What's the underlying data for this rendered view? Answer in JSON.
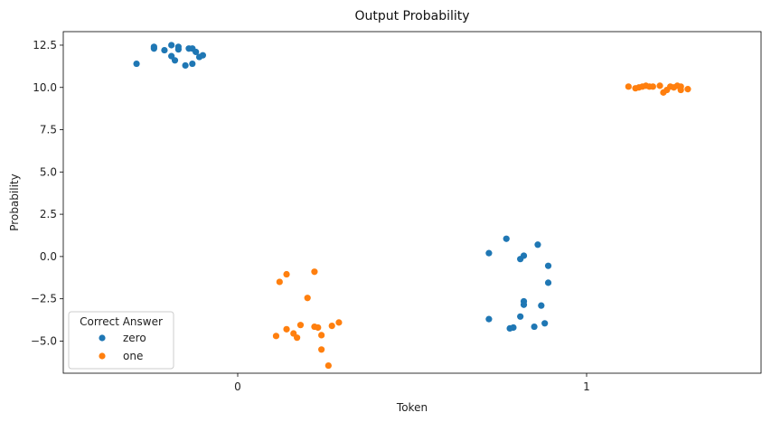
{
  "chart_data": {
    "type": "scatter",
    "title": "Output Probability",
    "xlabel": "Token",
    "ylabel": "Probability",
    "categories": [
      "0",
      "1"
    ],
    "ylim": [
      -6.9,
      13.3
    ],
    "yticks": [
      12.5,
      10.0,
      7.5,
      5.0,
      2.5,
      0.0,
      -2.5,
      -5.0
    ],
    "ytick_labels": [
      "12.5",
      "10.0",
      "7.5",
      "5.0",
      "2.5",
      "0.0",
      "−2.5",
      "−5.0"
    ],
    "grid": false,
    "legend": {
      "title": "Correct Answer",
      "placement": "lower-left"
    },
    "series": [
      {
        "name": "zero",
        "color": "#1f77b4",
        "points": [
          {
            "category": "0",
            "offset": -0.29,
            "y": 11.4
          },
          {
            "category": "0",
            "offset": -0.24,
            "y": 12.4
          },
          {
            "category": "0",
            "offset": -0.24,
            "y": 12.3
          },
          {
            "category": "0",
            "offset": -0.21,
            "y": 12.2
          },
          {
            "category": "0",
            "offset": -0.19,
            "y": 12.5
          },
          {
            "category": "0",
            "offset": -0.19,
            "y": 11.85
          },
          {
            "category": "0",
            "offset": -0.18,
            "y": 11.6
          },
          {
            "category": "0",
            "offset": -0.17,
            "y": 12.4
          },
          {
            "category": "0",
            "offset": -0.17,
            "y": 12.25
          },
          {
            "category": "0",
            "offset": -0.15,
            "y": 11.3
          },
          {
            "category": "0",
            "offset": -0.14,
            "y": 12.3
          },
          {
            "category": "0",
            "offset": -0.13,
            "y": 12.3
          },
          {
            "category": "0",
            "offset": -0.13,
            "y": 11.4
          },
          {
            "category": "0",
            "offset": -0.12,
            "y": 12.1
          },
          {
            "category": "0",
            "offset": -0.11,
            "y": 11.8
          },
          {
            "category": "0",
            "offset": -0.1,
            "y": 11.9
          },
          {
            "category": "1",
            "offset": -0.28,
            "y": 0.2
          },
          {
            "category": "1",
            "offset": -0.28,
            "y": -3.7
          },
          {
            "category": "1",
            "offset": -0.23,
            "y": 1.05
          },
          {
            "category": "1",
            "offset": -0.22,
            "y": -4.25
          },
          {
            "category": "1",
            "offset": -0.21,
            "y": -4.2
          },
          {
            "category": "1",
            "offset": -0.19,
            "y": -3.55
          },
          {
            "category": "1",
            "offset": -0.19,
            "y": -0.15
          },
          {
            "category": "1",
            "offset": -0.18,
            "y": 0.05
          },
          {
            "category": "1",
            "offset": -0.18,
            "y": -2.65
          },
          {
            "category": "1",
            "offset": -0.18,
            "y": -2.85
          },
          {
            "category": "1",
            "offset": -0.15,
            "y": -4.15
          },
          {
            "category": "1",
            "offset": -0.14,
            "y": 0.7
          },
          {
            "category": "1",
            "offset": -0.13,
            "y": -2.9
          },
          {
            "category": "1",
            "offset": -0.12,
            "y": -3.95
          },
          {
            "category": "1",
            "offset": -0.11,
            "y": -0.55
          },
          {
            "category": "1",
            "offset": -0.11,
            "y": -1.55
          }
        ]
      },
      {
        "name": "one",
        "color": "#ff7f0e",
        "points": [
          {
            "category": "0",
            "offset": 0.12,
            "y": -1.5
          },
          {
            "category": "0",
            "offset": 0.11,
            "y": -4.7
          },
          {
            "category": "0",
            "offset": 0.14,
            "y": -1.05
          },
          {
            "category": "0",
            "offset": 0.14,
            "y": -4.3
          },
          {
            "category": "0",
            "offset": 0.16,
            "y": -4.55
          },
          {
            "category": "0",
            "offset": 0.17,
            "y": -4.8
          },
          {
            "category": "0",
            "offset": 0.18,
            "y": -4.05
          },
          {
            "category": "0",
            "offset": 0.2,
            "y": -2.45
          },
          {
            "category": "0",
            "offset": 0.22,
            "y": -4.15
          },
          {
            "category": "0",
            "offset": 0.22,
            "y": -0.9
          },
          {
            "category": "0",
            "offset": 0.23,
            "y": -4.2
          },
          {
            "category": "0",
            "offset": 0.24,
            "y": -4.65
          },
          {
            "category": "0",
            "offset": 0.24,
            "y": -5.5
          },
          {
            "category": "0",
            "offset": 0.26,
            "y": -6.45
          },
          {
            "category": "0",
            "offset": 0.27,
            "y": -4.1
          },
          {
            "category": "0",
            "offset": 0.29,
            "y": -3.9
          },
          {
            "category": "1",
            "offset": 0.12,
            "y": 10.05
          },
          {
            "category": "1",
            "offset": 0.14,
            "y": 9.95
          },
          {
            "category": "1",
            "offset": 0.15,
            "y": 10.0
          },
          {
            "category": "1",
            "offset": 0.16,
            "y": 10.05
          },
          {
            "category": "1",
            "offset": 0.17,
            "y": 10.1
          },
          {
            "category": "1",
            "offset": 0.18,
            "y": 10.05
          },
          {
            "category": "1",
            "offset": 0.19,
            "y": 10.05
          },
          {
            "category": "1",
            "offset": 0.21,
            "y": 10.1
          },
          {
            "category": "1",
            "offset": 0.22,
            "y": 9.7
          },
          {
            "category": "1",
            "offset": 0.23,
            "y": 9.85
          },
          {
            "category": "1",
            "offset": 0.24,
            "y": 10.05
          },
          {
            "category": "1",
            "offset": 0.25,
            "y": 10.0
          },
          {
            "category": "1",
            "offset": 0.26,
            "y": 10.1
          },
          {
            "category": "1",
            "offset": 0.27,
            "y": 9.85
          },
          {
            "category": "1",
            "offset": 0.27,
            "y": 10.05
          },
          {
            "category": "1",
            "offset": 0.29,
            "y": 9.9
          }
        ]
      }
    ]
  }
}
